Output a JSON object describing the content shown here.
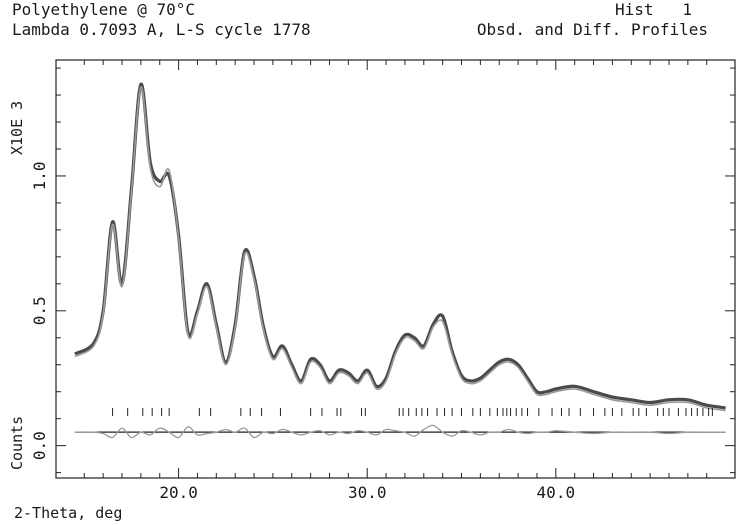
{
  "header": {
    "title_line1": "Polyethylene @ 70°C",
    "title_line2": "Lambda 0.7093 A, L-S cycle 1778",
    "hist_label": "Hist   1",
    "profile_label": "Obsd. and Diff. Profiles"
  },
  "chart_data": {
    "type": "line",
    "title": "Polyethylene @ 70°C",
    "xlabel": "2-Theta, deg",
    "ylabel": "Counts",
    "y_scale_label": "X10E  3",
    "xlim": [
      13.5,
      49.5
    ],
    "ylim": [
      -0.12,
      1.43
    ],
    "x_ticks": [
      "20.0",
      "30.0",
      "40.0"
    ],
    "y_ticks": [
      "0.0",
      "0.5",
      "1.0"
    ],
    "colors": {
      "observed": "#4a4a4a",
      "calculated": "#9a9a9a",
      "difference": "#9a9a9a",
      "zero_line": "#222222",
      "reflections": "#222222"
    },
    "series": [
      {
        "role": "observed",
        "x": [
          14.5,
          15.5,
          16.0,
          16.5,
          17.0,
          17.5,
          18.0,
          18.5,
          19.0,
          19.5,
          20.0,
          20.5,
          21.0,
          21.5,
          22.0,
          22.5,
          23.0,
          23.5,
          24.0,
          24.5,
          25.0,
          25.5,
          26.0,
          26.5,
          27.0,
          27.5,
          28.0,
          28.5,
          29.0,
          29.5,
          30.0,
          30.5,
          31.0,
          31.5,
          32.0,
          32.5,
          33.0,
          33.5,
          34.0,
          34.5,
          35.0,
          35.5,
          36.0,
          36.5,
          37.0,
          37.5,
          38.0,
          38.5,
          39.0,
          39.5,
          40.0,
          41.0,
          42.0,
          43.0,
          44.0,
          45.0,
          46.0,
          47.0,
          48.0,
          49.0
        ],
        "y": [
          0.34,
          0.38,
          0.5,
          0.83,
          0.6,
          0.95,
          1.34,
          1.05,
          0.98,
          1.0,
          0.78,
          0.42,
          0.5,
          0.6,
          0.45,
          0.31,
          0.45,
          0.72,
          0.63,
          0.44,
          0.33,
          0.37,
          0.3,
          0.24,
          0.32,
          0.3,
          0.24,
          0.28,
          0.27,
          0.24,
          0.28,
          0.22,
          0.25,
          0.35,
          0.41,
          0.4,
          0.37,
          0.45,
          0.48,
          0.35,
          0.26,
          0.24,
          0.25,
          0.28,
          0.31,
          0.32,
          0.3,
          0.25,
          0.2,
          0.2,
          0.21,
          0.22,
          0.2,
          0.18,
          0.17,
          0.16,
          0.17,
          0.17,
          0.15,
          0.14
        ]
      },
      {
        "role": "calculated",
        "x": [
          14.5,
          15.5,
          16.0,
          16.5,
          17.0,
          17.5,
          18.0,
          18.5,
          19.0,
          19.5,
          20.0,
          20.5,
          21.0,
          21.5,
          22.0,
          22.5,
          23.0,
          23.5,
          24.0,
          24.5,
          25.0,
          25.5,
          26.0,
          26.5,
          27.0,
          27.5,
          28.0,
          28.5,
          29.0,
          29.5,
          30.0,
          30.5,
          31.0,
          31.5,
          32.0,
          32.5,
          33.0,
          33.5,
          34.0,
          34.5,
          35.0,
          35.5,
          36.0,
          36.5,
          37.0,
          37.5,
          38.0,
          38.5,
          39.0,
          39.5,
          40.0,
          41.0,
          42.0,
          43.0,
          44.0,
          45.0,
          46.0,
          47.0,
          48.0,
          49.0
        ],
        "y": [
          0.33,
          0.37,
          0.49,
          0.82,
          0.59,
          0.94,
          1.33,
          1.03,
          0.96,
          1.02,
          0.77,
          0.41,
          0.49,
          0.59,
          0.44,
          0.3,
          0.44,
          0.71,
          0.62,
          0.43,
          0.32,
          0.36,
          0.29,
          0.23,
          0.31,
          0.29,
          0.23,
          0.27,
          0.26,
          0.23,
          0.27,
          0.21,
          0.24,
          0.34,
          0.4,
          0.39,
          0.36,
          0.44,
          0.46,
          0.34,
          0.25,
          0.23,
          0.24,
          0.27,
          0.3,
          0.31,
          0.29,
          0.24,
          0.19,
          0.19,
          0.2,
          0.21,
          0.19,
          0.17,
          0.16,
          0.15,
          0.16,
          0.16,
          0.14,
          0.13
        ]
      },
      {
        "role": "difference",
        "x": [
          14.5,
          15.5,
          16.0,
          16.5,
          17.0,
          17.5,
          18.0,
          18.5,
          19.0,
          19.5,
          20.0,
          20.5,
          21.0,
          21.5,
          22.0,
          22.5,
          23.0,
          23.5,
          24.0,
          24.5,
          25.0,
          25.5,
          26.0,
          26.5,
          27.0,
          27.5,
          28.0,
          28.5,
          29.0,
          29.5,
          30.0,
          30.5,
          31.0,
          31.5,
          32.0,
          32.5,
          33.0,
          33.5,
          34.0,
          34.5,
          35.0,
          35.5,
          36.0,
          36.5,
          37.0,
          37.5,
          38.0,
          38.5,
          39.0,
          39.5,
          40.0,
          41.0,
          42.0,
          43.0,
          44.0,
          45.0,
          46.0,
          47.0,
          48.0,
          49.0
        ],
        "y": [
          0.05,
          0.05,
          0.045,
          0.03,
          0.065,
          0.03,
          0.05,
          0.04,
          0.065,
          0.05,
          0.03,
          0.07,
          0.04,
          0.045,
          0.05,
          0.06,
          0.05,
          0.065,
          0.03,
          0.05,
          0.045,
          0.06,
          0.05,
          0.04,
          0.05,
          0.055,
          0.04,
          0.05,
          0.045,
          0.055,
          0.05,
          0.04,
          0.06,
          0.055,
          0.05,
          0.035,
          0.06,
          0.075,
          0.05,
          0.035,
          0.055,
          0.05,
          0.04,
          0.05,
          0.05,
          0.06,
          0.05,
          0.045,
          0.05,
          0.05,
          0.055,
          0.05,
          0.045,
          0.05,
          0.05,
          0.05,
          0.045,
          0.05,
          0.05,
          0.05
        ]
      }
    ],
    "zero_line_y": 0.05,
    "reflection_positions": [
      16.5,
      17.3,
      18.1,
      18.6,
      19.1,
      19.5,
      21.1,
      21.7,
      23.3,
      23.8,
      24.4,
      25.4,
      27.0,
      27.6,
      28.4,
      28.6,
      29.7,
      29.9,
      31.7,
      31.9,
      32.2,
      32.6,
      32.9,
      33.2,
      33.7,
      34.1,
      34.5,
      35.0,
      35.6,
      36.0,
      36.5,
      36.9,
      37.2,
      37.4,
      37.6,
      37.9,
      38.2,
      38.5,
      39.1,
      39.8,
      40.3,
      40.7,
      41.3,
      42.0,
      42.6,
      43.0,
      43.5,
      44.1,
      44.4,
      44.8,
      45.4,
      45.7,
      46.0,
      46.5,
      46.9,
      47.2,
      47.5,
      47.8,
      48.1,
      48.3
    ]
  }
}
